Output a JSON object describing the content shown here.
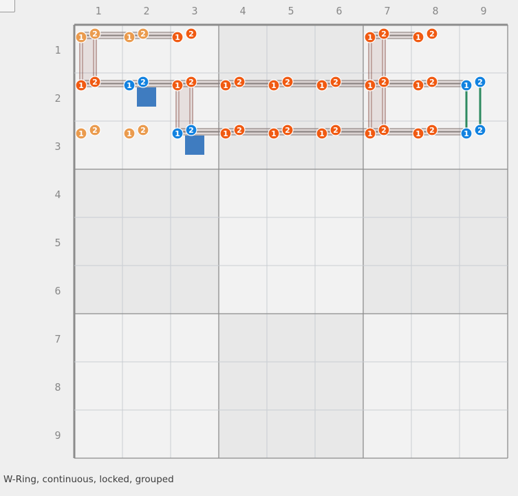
{
  "window": {
    "status_text": "W-Ring, continuous, locked, grouped"
  },
  "grid": {
    "rows": 9,
    "cols": 9,
    "col_labels": [
      "1",
      "2",
      "3",
      "4",
      "5",
      "6",
      "7",
      "8",
      "9"
    ],
    "row_labels": [
      "1",
      "2",
      "3",
      "4",
      "5",
      "6",
      "7",
      "8",
      "9"
    ],
    "shaded_blocks": [
      [
        0,
        1
      ],
      [
        1,
        0
      ],
      [
        1,
        2
      ],
      [
        2,
        1
      ]
    ]
  },
  "colors": {
    "cell_light": "#f2f2f2",
    "cell_shaded": "#e8e8e8",
    "grid_line": "#c9cdd2",
    "block_line": "#8c8c8c",
    "pin_orange": "#f05a12",
    "pin_light_orange": "#ea9b4e",
    "pin_blue": "#1282e0",
    "link_green": "#2e8a60",
    "trace_brown": "#7d3c32",
    "node_square": "#3f7cc0"
  },
  "pins": [
    {
      "row": 1,
      "col": 1,
      "color": "light"
    },
    {
      "row": 1,
      "col": 2,
      "color": "light"
    },
    {
      "row": 1,
      "col": 3,
      "color": "orange"
    },
    {
      "row": 1,
      "col": 7,
      "color": "orange"
    },
    {
      "row": 1,
      "col": 8,
      "color": "orange"
    },
    {
      "row": 2,
      "col": 1,
      "color": "orange"
    },
    {
      "row": 2,
      "col": 2,
      "color": "blue"
    },
    {
      "row": 2,
      "col": 3,
      "color": "orange"
    },
    {
      "row": 2,
      "col": 4,
      "color": "orange"
    },
    {
      "row": 2,
      "col": 5,
      "color": "orange"
    },
    {
      "row": 2,
      "col": 6,
      "color": "orange"
    },
    {
      "row": 2,
      "col": 7,
      "color": "orange"
    },
    {
      "row": 2,
      "col": 8,
      "color": "orange"
    },
    {
      "row": 2,
      "col": 9,
      "color": "blue"
    },
    {
      "row": 3,
      "col": 1,
      "color": "light"
    },
    {
      "row": 3,
      "col": 2,
      "color": "light"
    },
    {
      "row": 3,
      "col": 3,
      "color": "blue"
    },
    {
      "row": 3,
      "col": 4,
      "color": "orange"
    },
    {
      "row": 3,
      "col": 5,
      "color": "orange"
    },
    {
      "row": 3,
      "col": 6,
      "color": "orange"
    },
    {
      "row": 3,
      "col": 7,
      "color": "orange"
    },
    {
      "row": 3,
      "col": 8,
      "color": "orange"
    },
    {
      "row": 3,
      "col": 9,
      "color": "blue"
    }
  ],
  "pin_labels": [
    "1",
    "2"
  ],
  "horizontal_traces": [
    {
      "row": 1,
      "from": 1,
      "to": 3
    },
    {
      "row": 1,
      "from": 7,
      "to": 8
    },
    {
      "row": 2,
      "from": 1,
      "to": 9
    },
    {
      "row": 3,
      "from": 3,
      "to": 9
    }
  ],
  "vertical_traces": [
    {
      "col": 1,
      "from": 1,
      "to": 2
    },
    {
      "col": 3,
      "from": 2,
      "to": 3
    },
    {
      "col": 7,
      "from": 1,
      "to": 3
    }
  ],
  "green_links": [
    {
      "col": 9,
      "from": 2,
      "to": 3
    }
  ],
  "squares": [
    {
      "row": 2,
      "col": 2
    },
    {
      "row": 3,
      "col": 3
    }
  ]
}
